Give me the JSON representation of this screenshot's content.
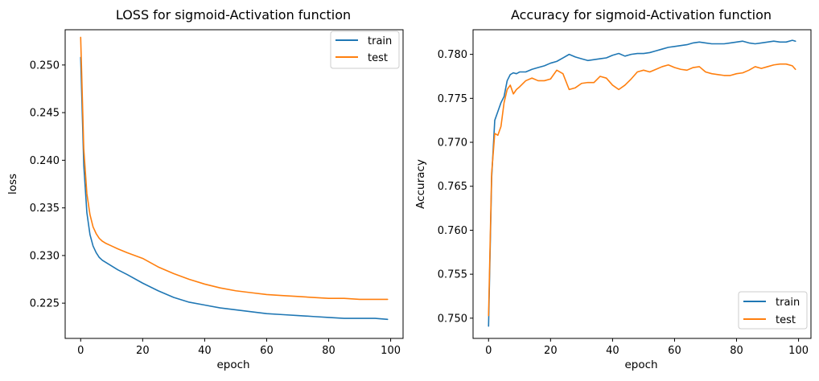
{
  "chart_data": [
    {
      "type": "line",
      "title": "LOSS for sigmoid-Activation function",
      "xlabel": "epoch",
      "ylabel": "loss",
      "xlim": [
        -5,
        104
      ],
      "ylim": [
        0.2213,
        0.2537
      ],
      "xticks": [
        0,
        20,
        40,
        60,
        80,
        100
      ],
      "xtick_labels": [
        "0",
        "20",
        "40",
        "60",
        "80",
        "100"
      ],
      "yticks": [
        0.225,
        0.23,
        0.235,
        0.24,
        0.245,
        0.25
      ],
      "ytick_labels": [
        "0.225",
        "0.230",
        "0.235",
        "0.240",
        "0.245",
        "0.250"
      ],
      "grid": false,
      "legend_loc": "top-right",
      "series": [
        {
          "name": "train",
          "color": "#1f77b4",
          "x": [
            0,
            1,
            2,
            3,
            4,
            5,
            6,
            7,
            8,
            10,
            12,
            15,
            20,
            25,
            30,
            35,
            40,
            45,
            50,
            55,
            60,
            65,
            70,
            75,
            80,
            85,
            90,
            95,
            99
          ],
          "y": [
            0.2508,
            0.2395,
            0.2345,
            0.2322,
            0.231,
            0.2303,
            0.2298,
            0.2295,
            0.2293,
            0.2289,
            0.2285,
            0.228,
            0.2271,
            0.2263,
            0.2256,
            0.2251,
            0.2248,
            0.2245,
            0.2243,
            0.2241,
            0.2239,
            0.2238,
            0.2237,
            0.2236,
            0.2235,
            0.2234,
            0.2234,
            0.2234,
            0.2233
          ]
        },
        {
          "name": "test",
          "color": "#ff7f0e",
          "x": [
            0,
            1,
            2,
            3,
            4,
            5,
            6,
            7,
            8,
            10,
            12,
            15,
            20,
            25,
            30,
            35,
            40,
            45,
            50,
            55,
            60,
            65,
            70,
            75,
            80,
            85,
            90,
            95,
            99
          ],
          "y": [
            0.2529,
            0.2412,
            0.2365,
            0.2343,
            0.233,
            0.2323,
            0.2318,
            0.2315,
            0.2313,
            0.231,
            0.2307,
            0.2303,
            0.2297,
            0.2288,
            0.2281,
            0.2275,
            0.227,
            0.2266,
            0.2263,
            0.2261,
            0.2259,
            0.2258,
            0.2257,
            0.2256,
            0.2255,
            0.2255,
            0.2254,
            0.2254,
            0.2254
          ]
        }
      ]
    },
    {
      "type": "line",
      "title": "Accuracy for sigmoid-Activation function",
      "xlabel": "epoch",
      "ylabel": "Accuracy",
      "xlim": [
        -5,
        104
      ],
      "ylim": [
        0.7477,
        0.7828
      ],
      "xticks": [
        0,
        20,
        40,
        60,
        80,
        100
      ],
      "xtick_labels": [
        "0",
        "20",
        "40",
        "60",
        "80",
        "100"
      ],
      "yticks": [
        0.75,
        0.755,
        0.76,
        0.765,
        0.77,
        0.775,
        0.78
      ],
      "ytick_labels": [
        "0.750",
        "0.755",
        "0.760",
        "0.765",
        "0.770",
        "0.775",
        "0.780"
      ],
      "grid": false,
      "legend_loc": "bottom-right",
      "series": [
        {
          "name": "train",
          "color": "#1f77b4",
          "x": [
            0,
            1,
            2,
            3,
            4,
            5,
            6,
            7,
            8,
            9,
            10,
            12,
            14,
            16,
            18,
            20,
            22,
            24,
            26,
            28,
            30,
            32,
            34,
            36,
            38,
            40,
            42,
            44,
            46,
            48,
            50,
            52,
            54,
            56,
            58,
            60,
            62,
            64,
            66,
            68,
            70,
            72,
            74,
            76,
            78,
            80,
            82,
            84,
            86,
            88,
            90,
            92,
            94,
            96,
            98,
            99
          ],
          "y": [
            0.7491,
            0.766,
            0.7725,
            0.7735,
            0.7745,
            0.7752,
            0.777,
            0.7777,
            0.7779,
            0.7778,
            0.778,
            0.778,
            0.7783,
            0.7785,
            0.7787,
            0.779,
            0.7792,
            0.7796,
            0.78,
            0.7797,
            0.7795,
            0.7793,
            0.7794,
            0.7795,
            0.7796,
            0.7799,
            0.7801,
            0.7798,
            0.78,
            0.7801,
            0.7801,
            0.7802,
            0.7804,
            0.7806,
            0.7808,
            0.7809,
            0.781,
            0.7811,
            0.7813,
            0.7814,
            0.7813,
            0.7812,
            0.7812,
            0.7812,
            0.7813,
            0.7814,
            0.7815,
            0.7813,
            0.7812,
            0.7813,
            0.7814,
            0.7815,
            0.7814,
            0.7814,
            0.7816,
            0.7815
          ]
        },
        {
          "name": "test",
          "color": "#ff7f0e",
          "x": [
            0,
            1,
            2,
            3,
            4,
            5,
            6,
            7,
            8,
            9,
            10,
            12,
            14,
            16,
            18,
            20,
            22,
            24,
            26,
            28,
            30,
            32,
            34,
            36,
            38,
            40,
            42,
            44,
            46,
            48,
            50,
            52,
            54,
            56,
            58,
            60,
            62,
            64,
            66,
            68,
            70,
            72,
            74,
            76,
            78,
            80,
            82,
            84,
            86,
            88,
            90,
            92,
            94,
            96,
            98,
            99
          ],
          "y": [
            0.7503,
            0.7665,
            0.771,
            0.7708,
            0.7718,
            0.7745,
            0.776,
            0.7765,
            0.7755,
            0.776,
            0.7763,
            0.777,
            0.7773,
            0.777,
            0.777,
            0.7772,
            0.7782,
            0.7778,
            0.776,
            0.7762,
            0.7767,
            0.7768,
            0.7768,
            0.7775,
            0.7773,
            0.7765,
            0.776,
            0.7765,
            0.7772,
            0.778,
            0.7782,
            0.778,
            0.7783,
            0.7786,
            0.7788,
            0.7785,
            0.7783,
            0.7782,
            0.7785,
            0.7786,
            0.778,
            0.7778,
            0.7777,
            0.7776,
            0.7776,
            0.7778,
            0.7779,
            0.7782,
            0.7786,
            0.7784,
            0.7786,
            0.7788,
            0.7789,
            0.7789,
            0.7787,
            0.7783
          ]
        }
      ]
    }
  ]
}
